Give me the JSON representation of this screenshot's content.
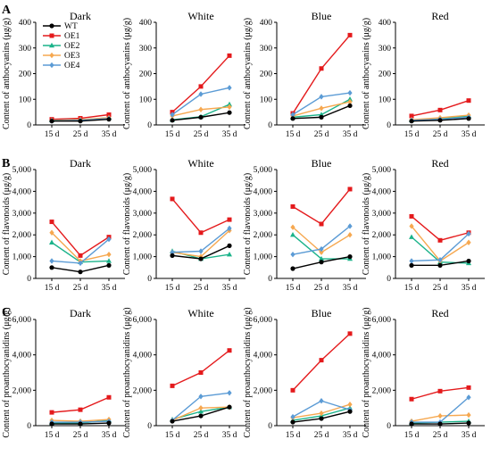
{
  "panel_letters": [
    "A",
    "B",
    "C"
  ],
  "series_styles": [
    {
      "name": "WT",
      "color": "#000000",
      "marker": "circle"
    },
    {
      "name": "OE1",
      "color": "#e41a1c",
      "marker": "square"
    },
    {
      "name": "OE2",
      "color": "#1bb38a",
      "marker": "triangle"
    },
    {
      "name": "OE3",
      "color": "#f6a850",
      "marker": "diamond"
    },
    {
      "name": "OE4",
      "color": "#5b9bd5",
      "marker": "diamond"
    }
  ],
  "chart_data": [
    {
      "type": "line",
      "row": "A",
      "title": "Dark",
      "ylabel": "Content of anthocyanins (μg/g)",
      "categories": [
        "15 d",
        "25 d",
        "35 d"
      ],
      "ylim": [
        0,
        400
      ],
      "yticks": [
        0,
        100,
        200,
        300,
        400
      ],
      "ytick_labels": [
        "0",
        "100",
        "200",
        "300",
        "400"
      ],
      "legend": true,
      "series": [
        {
          "name": "WT",
          "values": [
            15,
            15,
            22
          ]
        },
        {
          "name": "OE1",
          "values": [
            22,
            26,
            40
          ]
        },
        {
          "name": "OE2",
          "values": [
            18,
            20,
            28
          ]
        },
        {
          "name": "OE3",
          "values": [
            17,
            20,
            28
          ]
        },
        {
          "name": "OE4",
          "values": [
            16,
            18,
            25
          ]
        }
      ]
    },
    {
      "type": "line",
      "row": "A",
      "title": "White",
      "ylabel": "Content of anthocyanins (μg/g)",
      "categories": [
        "15 d",
        "25 d",
        "35 d"
      ],
      "ylim": [
        0,
        400
      ],
      "yticks": [
        0,
        100,
        200,
        300,
        400
      ],
      "ytick_labels": [
        "0",
        "100",
        "200",
        "300",
        "400"
      ],
      "legend": false,
      "series": [
        {
          "name": "WT",
          "values": [
            18,
            30,
            48
          ]
        },
        {
          "name": "OE1",
          "values": [
            50,
            150,
            270
          ]
        },
        {
          "name": "OE2",
          "values": [
            20,
            32,
            80
          ]
        },
        {
          "name": "OE3",
          "values": [
            35,
            60,
            70
          ]
        },
        {
          "name": "OE4",
          "values": [
            40,
            120,
            145
          ]
        }
      ]
    },
    {
      "type": "line",
      "row": "A",
      "title": "Blue",
      "ylabel": "Content of anthocyanins (μg/g)",
      "categories": [
        "15 d",
        "25 d",
        "35 d"
      ],
      "ylim": [
        0,
        400
      ],
      "yticks": [
        0,
        100,
        200,
        300,
        400
      ],
      "ytick_labels": [
        "0",
        "100",
        "200",
        "300",
        "400"
      ],
      "legend": false,
      "series": [
        {
          "name": "WT",
          "values": [
            25,
            30,
            75
          ]
        },
        {
          "name": "OE1",
          "values": [
            45,
            220,
            350
          ]
        },
        {
          "name": "OE2",
          "values": [
            30,
            40,
            100
          ]
        },
        {
          "name": "OE3",
          "values": [
            35,
            65,
            90
          ]
        },
        {
          "name": "OE4",
          "values": [
            40,
            110,
            125
          ]
        }
      ]
    },
    {
      "type": "line",
      "row": "A",
      "title": "Red",
      "ylabel": "Content of anthocyanins (μg/g)",
      "categories": [
        "15 d",
        "25 d",
        "35 d"
      ],
      "ylim": [
        0,
        400
      ],
      "yticks": [
        0,
        100,
        200,
        300,
        400
      ],
      "ytick_labels": [
        "0",
        "100",
        "200",
        "300",
        "400"
      ],
      "legend": false,
      "series": [
        {
          "name": "WT",
          "values": [
            15,
            18,
            25
          ]
        },
        {
          "name": "OE1",
          "values": [
            35,
            58,
            95
          ]
        },
        {
          "name": "OE2",
          "values": [
            18,
            25,
            35
          ]
        },
        {
          "name": "OE3",
          "values": [
            20,
            28,
            38
          ]
        },
        {
          "name": "OE4",
          "values": [
            18,
            22,
            30
          ]
        }
      ]
    },
    {
      "type": "line",
      "row": "B",
      "title": "Dark",
      "ylabel": "Content of flavonoids (μg/g)",
      "categories": [
        "15 d",
        "25 d",
        "35 d"
      ],
      "ylim": [
        0,
        5000
      ],
      "yticks": [
        0,
        1000,
        2000,
        3000,
        4000,
        5000
      ],
      "ytick_labels": [
        "0",
        "1,000",
        "2,000",
        "3,000",
        "4,000",
        "5,000"
      ],
      "legend": false,
      "series": [
        {
          "name": "WT",
          "values": [
            500,
            300,
            600
          ]
        },
        {
          "name": "OE1",
          "values": [
            2600,
            1050,
            1900
          ]
        },
        {
          "name": "OE2",
          "values": [
            1650,
            750,
            800
          ]
        },
        {
          "name": "OE3",
          "values": [
            2100,
            800,
            1100
          ]
        },
        {
          "name": "OE4",
          "values": [
            800,
            700,
            1800
          ]
        }
      ]
    },
    {
      "type": "line",
      "row": "B",
      "title": "White",
      "ylabel": "Content of flavonoids (μg/g)",
      "categories": [
        "15 d",
        "25 d",
        "35 d"
      ],
      "ylim": [
        0,
        5000
      ],
      "yticks": [
        0,
        1000,
        2000,
        3000,
        4000,
        5000
      ],
      "ytick_labels": [
        "0",
        "1,000",
        "2,000",
        "3,000",
        "4,000",
        "5,000"
      ],
      "legend": false,
      "series": [
        {
          "name": "WT",
          "values": [
            1050,
            900,
            1500
          ]
        },
        {
          "name": "OE1",
          "values": [
            3650,
            2100,
            2700
          ]
        },
        {
          "name": "OE2",
          "values": [
            1250,
            900,
            1100
          ]
        },
        {
          "name": "OE3",
          "values": [
            1200,
            1000,
            2200
          ]
        },
        {
          "name": "OE4",
          "values": [
            1200,
            1250,
            2300
          ]
        }
      ]
    },
    {
      "type": "line",
      "row": "B",
      "title": "Blue",
      "ylabel": "Content of flavonoids (μg/g)",
      "categories": [
        "15 d",
        "25 d",
        "35 d"
      ],
      "ylim": [
        0,
        5000
      ],
      "yticks": [
        0,
        1000,
        2000,
        3000,
        4000,
        5000
      ],
      "ytick_labels": [
        "0",
        "1,000",
        "2,000",
        "3,000",
        "4,000",
        "5,000"
      ],
      "legend": false,
      "series": [
        {
          "name": "WT",
          "values": [
            450,
            750,
            1000
          ]
        },
        {
          "name": "OE1",
          "values": [
            3300,
            2500,
            4100
          ]
        },
        {
          "name": "OE2",
          "values": [
            2000,
            900,
            900
          ]
        },
        {
          "name": "OE3",
          "values": [
            2350,
            1200,
            2000
          ]
        },
        {
          "name": "OE4",
          "values": [
            1100,
            1350,
            2400
          ]
        }
      ]
    },
    {
      "type": "line",
      "row": "B",
      "title": "Red",
      "ylabel": "Content of flavonoids (μg/g)",
      "categories": [
        "15 d",
        "25 d",
        "35 d"
      ],
      "ylim": [
        0,
        5000
      ],
      "yticks": [
        0,
        1000,
        2000,
        3000,
        4000,
        5000
      ],
      "ytick_labels": [
        "0",
        "1,000",
        "2,000",
        "3,000",
        "4,000",
        "5,000"
      ],
      "legend": false,
      "series": [
        {
          "name": "WT",
          "values": [
            600,
            600,
            800
          ]
        },
        {
          "name": "OE1",
          "values": [
            2850,
            1750,
            2100
          ]
        },
        {
          "name": "OE2",
          "values": [
            1900,
            750,
            700
          ]
        },
        {
          "name": "OE3",
          "values": [
            2400,
            800,
            1650
          ]
        },
        {
          "name": "OE4",
          "values": [
            800,
            850,
            2050
          ]
        }
      ]
    },
    {
      "type": "line",
      "row": "C",
      "title": "Dark",
      "ylabel": "Content of proanthocyanidins (μg/g)",
      "categories": [
        "15 d",
        "25 d",
        "35 d"
      ],
      "ylim": [
        0,
        6000
      ],
      "yticks": [
        0,
        2000,
        4000,
        6000
      ],
      "ytick_labels": [
        "0",
        "2,000",
        "4,000",
        "6,000"
      ],
      "legend": false,
      "series": [
        {
          "name": "WT",
          "values": [
            100,
            100,
            150
          ]
        },
        {
          "name": "OE1",
          "values": [
            750,
            900,
            1600
          ]
        },
        {
          "name": "OE2",
          "values": [
            150,
            150,
            300
          ]
        },
        {
          "name": "OE3",
          "values": [
            300,
            250,
            350
          ]
        },
        {
          "name": "OE4",
          "values": [
            200,
            200,
            250
          ]
        }
      ]
    },
    {
      "type": "line",
      "row": "C",
      "title": "White",
      "ylabel": "Content of proanthocyanidins (μg/g)",
      "categories": [
        "15 d",
        "25 d",
        "35 d"
      ],
      "ylim": [
        0,
        6000
      ],
      "yticks": [
        0,
        2000,
        4000,
        6000
      ],
      "ytick_labels": [
        "0",
        "2,000",
        "4,000",
        "6,000"
      ],
      "legend": false,
      "series": [
        {
          "name": "WT",
          "values": [
            250,
            550,
            1050
          ]
        },
        {
          "name": "OE1",
          "values": [
            2250,
            3000,
            4250
          ]
        },
        {
          "name": "OE2",
          "values": [
            350,
            800,
            1050
          ]
        },
        {
          "name": "OE3",
          "values": [
            300,
            1000,
            1050
          ]
        },
        {
          "name": "OE4",
          "values": [
            300,
            1650,
            1850
          ]
        }
      ]
    },
    {
      "type": "line",
      "row": "C",
      "title": "Blue",
      "ylabel": "Content of proanthocyanidins (μg/g)",
      "categories": [
        "15 d",
        "25 d",
        "35 d"
      ],
      "ylim": [
        0,
        6000
      ],
      "yticks": [
        0,
        2000,
        4000,
        6000
      ],
      "ytick_labels": [
        "0",
        "2,000",
        "4,000",
        "6,000"
      ],
      "legend": false,
      "series": [
        {
          "name": "WT",
          "values": [
            200,
            400,
            800
          ]
        },
        {
          "name": "OE1",
          "values": [
            2000,
            3700,
            5200
          ]
        },
        {
          "name": "OE2",
          "values": [
            300,
            550,
            1000
          ]
        },
        {
          "name": "OE3",
          "values": [
            450,
            700,
            1200
          ]
        },
        {
          "name": "OE4",
          "values": [
            500,
            1400,
            900
          ]
        }
      ]
    },
    {
      "type": "line",
      "row": "C",
      "title": "Red",
      "ylabel": "Content of proanthocyanidins (μg/g)",
      "categories": [
        "15 d",
        "25 d",
        "35 d"
      ],
      "ylim": [
        0,
        6000
      ],
      "yticks": [
        0,
        2000,
        4000,
        6000
      ],
      "ytick_labels": [
        "0",
        "2,000",
        "4,000",
        "6,000"
      ],
      "legend": false,
      "series": [
        {
          "name": "WT",
          "values": [
            100,
            100,
            150
          ]
        },
        {
          "name": "OE1",
          "values": [
            1500,
            1950,
            2150
          ]
        },
        {
          "name": "OE2",
          "values": [
            150,
            200,
            250
          ]
        },
        {
          "name": "OE3",
          "values": [
            250,
            550,
            600
          ]
        },
        {
          "name": "OE4",
          "values": [
            200,
            200,
            1600
          ]
        }
      ]
    }
  ]
}
